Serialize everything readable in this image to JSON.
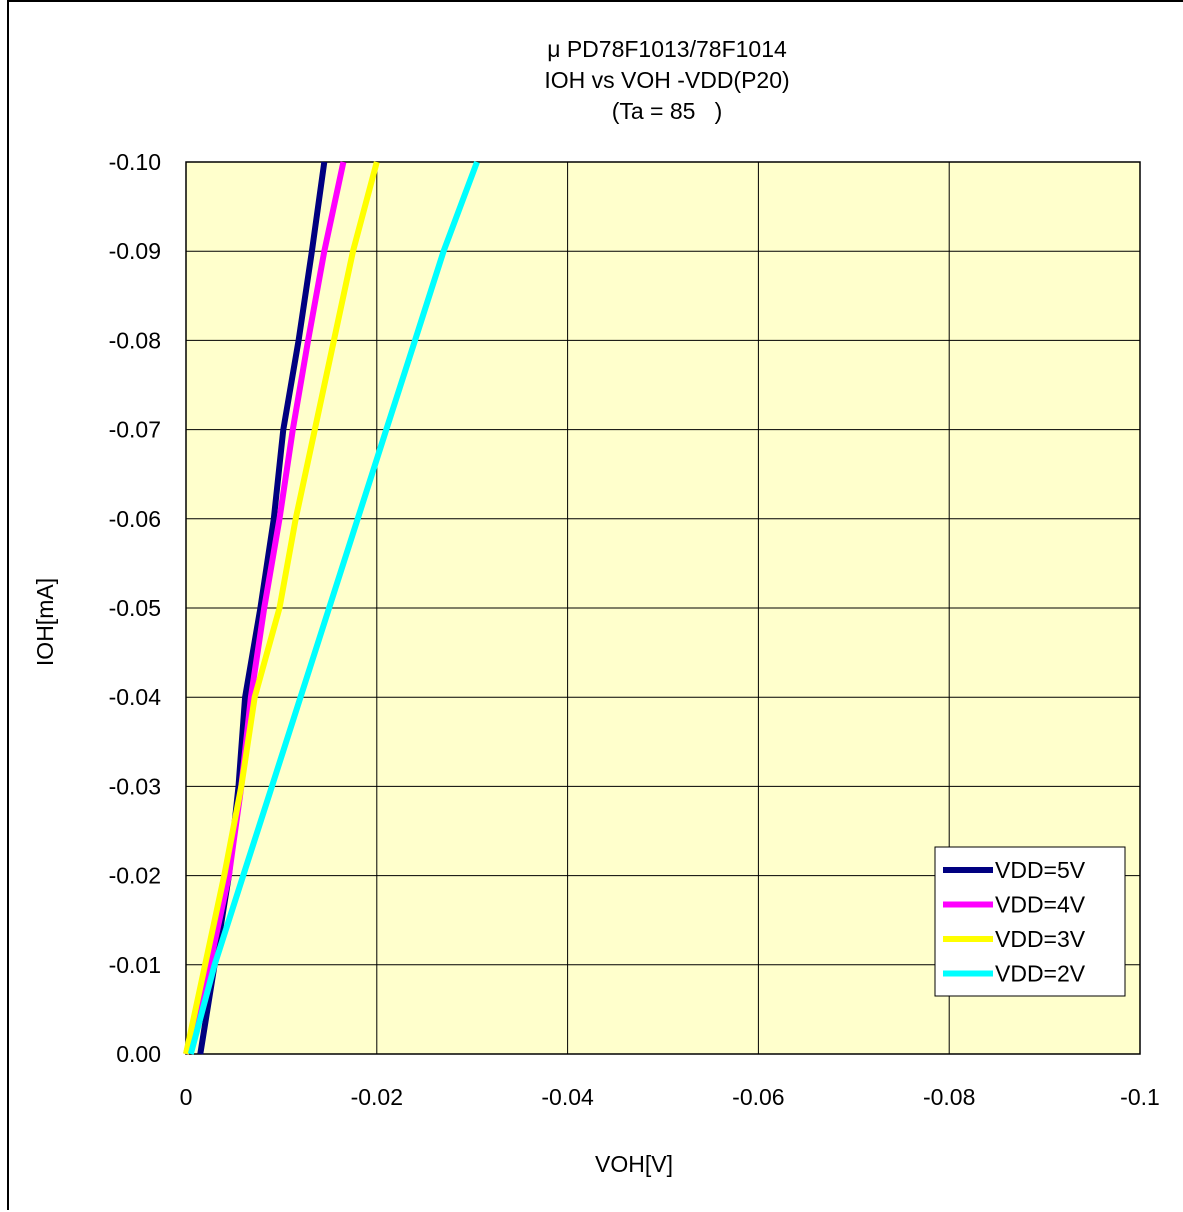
{
  "chart_data": {
    "type": "line",
    "title_lines": [
      "μ PD78F1013/78F1014",
      "IOH vs VOH -VDD(P20)",
      "(Ta = 85   )"
    ],
    "xlabel": "VOH[V]",
    "ylabel": "IOH[mA]",
    "xlim": [
      0,
      -0.1
    ],
    "ylim": [
      0,
      -0.1
    ],
    "x_ticks": [
      "0",
      "-0.02",
      "-0.04",
      "-0.06",
      "-0.08",
      "-0.1"
    ],
    "x_tick_values": [
      0,
      -0.02,
      -0.04,
      -0.06,
      -0.08,
      -0.1
    ],
    "y_ticks": [
      "0.00",
      "-0.01",
      "-0.02",
      "-0.03",
      "-0.04",
      "-0.05",
      "-0.06",
      "-0.07",
      "-0.08",
      "-0.09",
      "-0.10"
    ],
    "y_tick_values": [
      0,
      -0.01,
      -0.02,
      -0.03,
      -0.04,
      -0.05,
      -0.06,
      -0.07,
      -0.08,
      -0.09,
      -0.1
    ],
    "grid": true,
    "plot_background": "#ffffcc",
    "legend_position": "bottom-right",
    "series": [
      {
        "name": "VDD=5V",
        "color": "#000080",
        "points": [
          [
            -0.0015,
            0
          ],
          [
            -0.003,
            -0.01
          ],
          [
            -0.0045,
            -0.02
          ],
          [
            -0.0055,
            -0.03
          ],
          [
            -0.0062,
            -0.04
          ],
          [
            -0.0078,
            -0.05
          ],
          [
            -0.0092,
            -0.06
          ],
          [
            -0.0102,
            -0.07
          ],
          [
            -0.0118,
            -0.08
          ],
          [
            -0.0132,
            -0.09
          ],
          [
            -0.0145,
            -0.1
          ]
        ]
      },
      {
        "name": "VDD=4V",
        "color": "#ff00ff",
        "points": [
          [
            0,
            0
          ],
          [
            -0.0025,
            -0.01
          ],
          [
            -0.0045,
            -0.02
          ],
          [
            -0.0058,
            -0.03
          ],
          [
            -0.0068,
            -0.04
          ],
          [
            -0.0082,
            -0.05
          ],
          [
            -0.0098,
            -0.06
          ],
          [
            -0.0112,
            -0.07
          ],
          [
            -0.0128,
            -0.08
          ],
          [
            -0.0145,
            -0.09
          ],
          [
            -0.0165,
            -0.1
          ]
        ]
      },
      {
        "name": "VDD=3V",
        "color": "#ffff00",
        "points": [
          [
            0,
            0
          ],
          [
            -0.002,
            -0.01
          ],
          [
            -0.004,
            -0.02
          ],
          [
            -0.0058,
            -0.03
          ],
          [
            -0.0072,
            -0.04
          ],
          [
            -0.0098,
            -0.05
          ],
          [
            -0.0115,
            -0.06
          ],
          [
            -0.0135,
            -0.07
          ],
          [
            -0.0155,
            -0.08
          ],
          [
            -0.0175,
            -0.09
          ],
          [
            -0.02,
            -0.1
          ]
        ]
      },
      {
        "name": "VDD=2V",
        "color": "#00ffff",
        "points": [
          [
            -0.0005,
            0
          ],
          [
            -0.003,
            -0.01
          ],
          [
            -0.006,
            -0.02
          ],
          [
            -0.009,
            -0.03
          ],
          [
            -0.012,
            -0.04
          ],
          [
            -0.015,
            -0.05
          ],
          [
            -0.018,
            -0.06
          ],
          [
            -0.021,
            -0.07
          ],
          [
            -0.024,
            -0.08
          ],
          [
            -0.027,
            -0.09
          ],
          [
            -0.0305,
            -0.1
          ]
        ]
      }
    ]
  }
}
